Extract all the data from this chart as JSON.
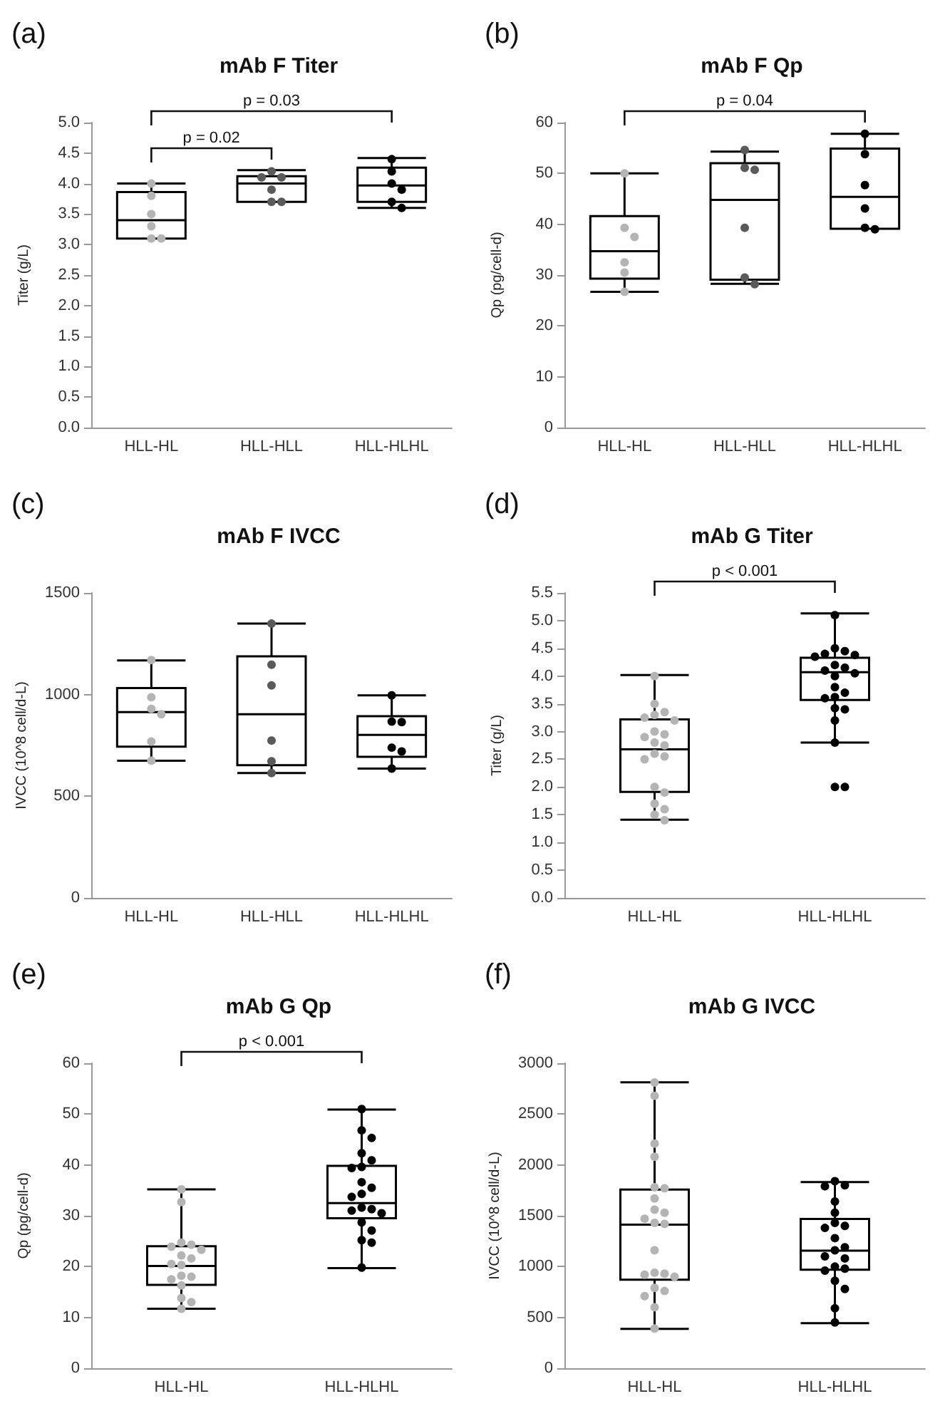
{
  "chart_data": [
    {
      "type": "box",
      "title": "mAb F Titer",
      "ylabel": "Titer (g/L)",
      "categories": [
        "HLL-HL",
        "HLL-HLL",
        "HLL-HLHL"
      ],
      "ylim": [
        0,
        5
      ],
      "yticks": [
        {
          "value": 0,
          "label": "0.0"
        },
        0.5,
        {
          "value": 1,
          "label": "1.0"
        },
        1.5,
        {
          "value": 2,
          "label": "2.0"
        },
        2.5,
        {
          "value": 3,
          "label": "3.0"
        },
        3.5,
        {
          "value": 4,
          "label": "4.0"
        },
        4.5,
        {
          "value": 5,
          "label": "5.0"
        }
      ],
      "annotations": [
        "(a)",
        "p = 0.02",
        "p = 0.03"
      ],
      "series": [
        {
          "type": "box",
          "color": "#000000",
          "boxes": [
            {
              "low": 3.1,
              "q1": 3.1,
              "median": 3.4,
              "q3": 3.86,
              "high": 4.0
            },
            {
              "low": 3.7,
              "q1": 3.7,
              "median": 4.0,
              "q3": 4.12,
              "high": 4.22
            },
            {
              "low": 3.6,
              "q1": 3.7,
              "median": 3.97,
              "q3": 4.26,
              "high": 4.42
            }
          ]
        },
        {
          "type": "scatter",
          "color": "#b4b4b4",
          "x": [
            "HLL-HL",
            "HLL-HL",
            "HLL-HL",
            "HLL-HL",
            "HLL-HL",
            "HLL-HL"
          ],
          "values": [
            4.0,
            3.8,
            3.5,
            3.3,
            3.1,
            3.1
          ]
        },
        {
          "type": "scatter",
          "color": "#5a5a5a",
          "x": [
            "HLL-HLL",
            "HLL-HLL",
            "HLL-HLL",
            "HLL-HLL",
            "HLL-HLL",
            "HLL-HLL"
          ],
          "values": [
            4.2,
            4.1,
            4.1,
            3.9,
            3.7,
            3.7
          ]
        },
        {
          "type": "scatter",
          "color": "#000000",
          "x": [
            "HLL-HLHL",
            "HLL-HLHL",
            "HLL-HLHL",
            "HLL-HLHL",
            "HLL-HLHL",
            "HLL-HLHL"
          ],
          "values": [
            4.4,
            4.2,
            4.0,
            3.9,
            3.7,
            3.6
          ]
        }
      ]
    },
    {
      "type": "box",
      "title": "mAb F Qp",
      "ylabel": "Qp (pg/cell-d)",
      "categories": [
        "HLL-HL",
        "HLL-HLL",
        "HLL-HLHL"
      ],
      "ylim": [
        0,
        60
      ],
      "yticks": [
        0,
        10,
        20,
        30,
        40,
        50,
        60
      ],
      "annotations": [
        "(b)",
        "p = 0.04"
      ],
      "series": [
        {
          "type": "box",
          "color": "#000000",
          "boxes": [
            {
              "low": 26.7,
              "q1": 29.3,
              "median": 34.7,
              "q3": 41.6,
              "high": 50.0
            },
            {
              "low": 28.3,
              "q1": 29.1,
              "median": 44.8,
              "q3": 52.0,
              "high": 54.3
            },
            {
              "low": 39.1,
              "q1": 39.1,
              "median": 45.4,
              "q3": 54.9,
              "high": 57.8
            }
          ]
        },
        {
          "type": "scatter",
          "color": "#b4b4b4",
          "x": [
            "HLL-HL",
            "HLL-HL",
            "HLL-HL",
            "HLL-HL",
            "HLL-HL",
            "HLL-HL"
          ],
          "values": [
            50.0,
            39.3,
            37.5,
            32.5,
            30.5,
            26.7
          ]
        },
        {
          "type": "scatter",
          "color": "#5a5a5a",
          "x": [
            "HLL-HLL",
            "HLL-HLL",
            "HLL-HLL",
            "HLL-HLL",
            "HLL-HLL",
            "HLL-HLL"
          ],
          "values": [
            54.6,
            51.1,
            50.7,
            39.3,
            29.5,
            28.2
          ]
        },
        {
          "type": "scatter",
          "color": "#000000",
          "x": [
            "HLL-HLHL",
            "HLL-HLHL",
            "HLL-HLHL",
            "HLL-HLHL",
            "HLL-HLHL",
            "HLL-HLHL"
          ],
          "values": [
            57.8,
            53.8,
            47.7,
            43.1,
            39.3,
            39.0
          ]
        }
      ]
    },
    {
      "type": "box",
      "title": "mAb F IVCC",
      "ylabel": "IVCC (10^8 cell/d-L)",
      "categories": [
        "HLL-HL",
        "HLL-HLL",
        "HLL-HLHL"
      ],
      "ylim": [
        0,
        1500
      ],
      "yticks": [
        0,
        500,
        1000,
        1500
      ],
      "annotations": [
        "(c)"
      ],
      "series": [
        {
          "type": "box",
          "color": "#000000",
          "boxes": [
            {
              "low": 675,
              "q1": 744,
              "median": 914,
              "q3": 1032,
              "high": 1168
            },
            {
              "low": 614,
              "q1": 653,
              "median": 903,
              "q3": 1188,
              "high": 1349
            },
            {
              "low": 636,
              "q1": 694,
              "median": 802,
              "q3": 894,
              "high": 996
            }
          ]
        },
        {
          "type": "scatter",
          "color": "#b4b4b4",
          "x": [
            "HLL-HL",
            "HLL-HL",
            "HLL-HL",
            "HLL-HL",
            "HLL-HL",
            "HLL-HL"
          ],
          "values": [
            1170,
            987,
            930,
            903,
            769,
            675
          ]
        },
        {
          "type": "scatter",
          "color": "#5a5a5a",
          "x": [
            "HLL-HLL",
            "HLL-HLL",
            "HLL-HLL",
            "HLL-HLL",
            "HLL-HLL",
            "HLL-HLL"
          ],
          "values": [
            1349,
            1147,
            1045,
            774,
            672,
            614
          ]
        },
        {
          "type": "scatter",
          "color": "#000000",
          "x": [
            "HLL-HLHL",
            "HLL-HLHL",
            "HLL-HLHL",
            "HLL-HLHL",
            "HLL-HLHL",
            "HLL-HLHL"
          ],
          "values": [
            996,
            867,
            865,
            739,
            720,
            636
          ]
        }
      ]
    },
    {
      "type": "box",
      "title": "mAb G Titer",
      "ylabel": "Titer (g/L)",
      "categories": [
        "HLL-HL",
        "HLL-HLHL"
      ],
      "ylim": [
        0,
        5.5
      ],
      "yticks": [
        {
          "value": 0,
          "label": "0.0"
        },
        0.5,
        {
          "value": 1,
          "label": "1.0"
        },
        1.5,
        {
          "value": 2,
          "label": "2.0"
        },
        2.5,
        {
          "value": 3,
          "label": "3.0"
        },
        3.5,
        {
          "value": 4,
          "label": "4.0"
        },
        4.5,
        {
          "value": 5,
          "label": "5.0"
        },
        5.5
      ],
      "annotations": [
        "(d)",
        "p < 0.001"
      ],
      "series": [
        {
          "type": "box",
          "color": "#000000",
          "boxes": [
            {
              "low": 1.41,
              "q1": 1.91,
              "median": 2.68,
              "q3": 3.22,
              "high": 4.02
            },
            {
              "low": 2.8,
              "q1": 3.57,
              "median": 4.07,
              "q3": 4.33,
              "high": 5.13,
              "outliers": [
                2.0,
                2.0
              ]
            }
          ]
        },
        {
          "type": "scatter",
          "color": "#b4b4b4",
          "x": [
            "HLL-HL",
            "HLL-HL",
            "HLL-HL",
            "HLL-HL",
            "HLL-HL",
            "HLL-HL",
            "HLL-HL",
            "HLL-HL",
            "HLL-HL",
            "HLL-HL",
            "HLL-HL",
            "HLL-HL",
            "HLL-HL",
            "HLL-HL",
            "HLL-HL",
            "HLL-HL",
            "HLL-HL",
            "HLL-HL",
            "HLL-HL",
            "HLL-HL"
          ],
          "values": [
            4.0,
            3.5,
            3.35,
            3.3,
            3.25,
            3.2,
            3.0,
            2.95,
            2.9,
            2.8,
            2.75,
            2.6,
            2.55,
            2.5,
            2.0,
            1.9,
            1.7,
            1.6,
            1.5,
            1.4
          ]
        },
        {
          "type": "scatter",
          "color": "#000000",
          "x": [
            "HLL-HLHL",
            "HLL-HLHL",
            "HLL-HLHL",
            "HLL-HLHL",
            "HLL-HLHL",
            "HLL-HLHL",
            "HLL-HLHL",
            "HLL-HLHL",
            "HLL-HLHL",
            "HLL-HLHL",
            "HLL-HLHL",
            "HLL-HLHL",
            "HLL-HLHL",
            "HLL-HLHL",
            "HLL-HLHL",
            "HLL-HLHL",
            "HLL-HLHL",
            "HLL-HLHL",
            "HLL-HLHL"
          ],
          "values": [
            5.1,
            4.5,
            4.45,
            4.4,
            4.38,
            4.35,
            4.2,
            4.15,
            4.1,
            4.05,
            4.0,
            3.8,
            3.7,
            3.62,
            3.6,
            3.42,
            3.4,
            3.2,
            2.8
          ]
        }
      ]
    },
    {
      "type": "box",
      "title": "mAb G Qp",
      "ylabel": "Qp (pg/cell-d)",
      "categories": [
        "HLL-HL",
        "HLL-HLHL"
      ],
      "ylim": [
        0,
        60
      ],
      "yticks": [
        0,
        10,
        20,
        30,
        40,
        50,
        60
      ],
      "annotations": [
        "(e)",
        "p < 0.001"
      ],
      "series": [
        {
          "type": "box",
          "color": "#000000",
          "boxes": [
            {
              "low": 11.7,
              "q1": 16.4,
              "median": 20.1,
              "q3": 24.0,
              "high": 35.2
            },
            {
              "low": 19.7,
              "q1": 29.5,
              "median": 32.5,
              "q3": 39.8,
              "high": 50.9
            }
          ]
        },
        {
          "type": "scatter",
          "color": "#b4b4b4",
          "x": [
            "HLL-HL",
            "HLL-HL",
            "HLL-HL",
            "HLL-HL",
            "HLL-HL",
            "HLL-HL",
            "HLL-HL",
            "HLL-HL",
            "HLL-HL",
            "HLL-HL",
            "HLL-HL",
            "HLL-HL",
            "HLL-HL",
            "HLL-HL",
            "HLL-HL",
            "HLL-HL",
            "HLL-HL"
          ],
          "values": [
            35.2,
            32.7,
            24.7,
            24.3,
            23.9,
            23.3,
            22.2,
            21.6,
            20.5,
            20.3,
            18.2,
            18.0,
            17.5,
            16.3,
            13.8,
            13.0,
            11.7
          ]
        },
        {
          "type": "scatter",
          "color": "#000000",
          "x": [
            "HLL-HLHL",
            "HLL-HLHL",
            "HLL-HLHL",
            "HLL-HLHL",
            "HLL-HLHL",
            "HLL-HLHL",
            "HLL-HLHL",
            "HLL-HLHL",
            "HLL-HLHL",
            "HLL-HLHL",
            "HLL-HLHL",
            "HLL-HLHL",
            "HLL-HLHL",
            "HLL-HLHL",
            "HLL-HLHL",
            "HLL-HLHL",
            "HLL-HLHL",
            "HLL-HLHL",
            "HLL-HLHL",
            "HLL-HLHL"
          ],
          "values": [
            51.0,
            46.8,
            45.3,
            42.3,
            40.9,
            39.6,
            39.4,
            36.6,
            35.5,
            34.3,
            33.7,
            31.6,
            31.3,
            31.0,
            30.5,
            28.7,
            27.1,
            25.2,
            24.7,
            19.8
          ]
        }
      ]
    },
    {
      "type": "box",
      "title": "mAb G IVCC",
      "ylabel": "IVCC (10^8 cell/d-L)",
      "categories": [
        "HLL-HL",
        "HLL-HLHL"
      ],
      "ylim": [
        0,
        3000
      ],
      "yticks": [
        0,
        500,
        1000,
        1500,
        2000,
        2500,
        3000
      ],
      "annotations": [
        "(f)"
      ],
      "series": [
        {
          "type": "box",
          "color": "#000000",
          "boxes": [
            {
              "low": 388,
              "q1": 871,
              "median": 1412,
              "q3": 1758,
              "high": 2812
            },
            {
              "low": 444,
              "q1": 969,
              "median": 1157,
              "q3": 1468,
              "high": 1831
            }
          ]
        },
        {
          "type": "scatter",
          "color": "#b4b4b4",
          "x": [
            "HLL-HL",
            "HLL-HL",
            "HLL-HL",
            "HLL-HL",
            "HLL-HL",
            "HLL-HL",
            "HLL-HL",
            "HLL-HL",
            "HLL-HL",
            "HLL-HL",
            "HLL-HL",
            "HLL-HL",
            "HLL-HL",
            "HLL-HL",
            "HLL-HL",
            "HLL-HL",
            "HLL-HL",
            "HLL-HL",
            "HLL-HL",
            "HLL-HL",
            "HLL-HL",
            "HLL-HL"
          ],
          "values": [
            2810,
            2680,
            2210,
            2080,
            1780,
            1770,
            1670,
            1560,
            1530,
            1470,
            1430,
            1420,
            1160,
            940,
            930,
            920,
            900,
            790,
            760,
            710,
            600,
            390
          ]
        },
        {
          "type": "scatter",
          "color": "#000000",
          "x": [
            "HLL-HLHL",
            "HLL-HLHL",
            "HLL-HLHL",
            "HLL-HLHL",
            "HLL-HLHL",
            "HLL-HLHL",
            "HLL-HLHL",
            "HLL-HLHL",
            "HLL-HLHL",
            "HLL-HLHL",
            "HLL-HLHL",
            "HLL-HLHL",
            "HLL-HLHL",
            "HLL-HLHL",
            "HLL-HLHL",
            "HLL-HLHL",
            "HLL-HLHL",
            "HLL-HLHL",
            "HLL-HLHL",
            "HLL-HLHL"
          ],
          "values": [
            1840,
            1800,
            1790,
            1640,
            1530,
            1430,
            1400,
            1380,
            1280,
            1190,
            1160,
            1100,
            1080,
            1000,
            980,
            960,
            860,
            780,
            590,
            450
          ]
        }
      ]
    }
  ]
}
